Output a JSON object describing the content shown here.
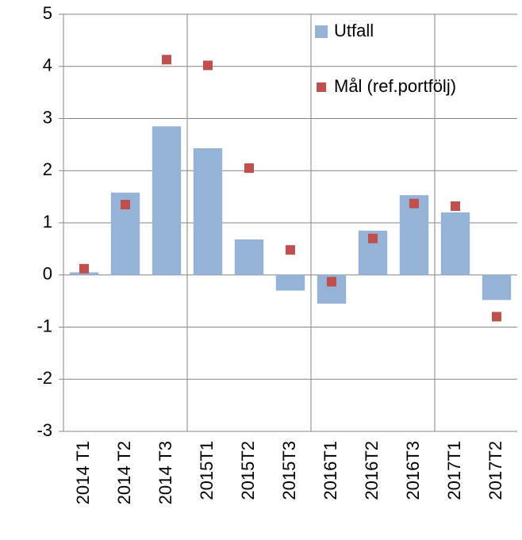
{
  "chart_data": {
    "type": "bar_scatter",
    "categories": [
      "2014 T1",
      "2014 T2",
      "2014 T3",
      "2015T1",
      "2015T2",
      "2015T3",
      "2016T1",
      "2016T2",
      "2016T3",
      "2017T1",
      "2017T2"
    ],
    "series": [
      {
        "name": "Utfall",
        "type": "bar",
        "color": "#95b3d7",
        "values": [
          0.05,
          1.58,
          2.85,
          2.43,
          0.68,
          -0.3,
          -0.55,
          0.85,
          1.53,
          1.2,
          -0.48
        ]
      },
      {
        "name": "Mål (ref.portfölj)",
        "type": "scatter",
        "color": "#c0504d",
        "values": [
          0.12,
          1.35,
          4.13,
          4.02,
          2.05,
          0.48,
          -0.13,
          0.7,
          1.37,
          1.32,
          -0.8
        ]
      }
    ],
    "ylim": [
      -3,
      5
    ],
    "yticks": [
      -3,
      -2,
      -1,
      0,
      1,
      2,
      3,
      4,
      5
    ],
    "grid": true,
    "category_dividers": [
      3,
      6,
      9
    ],
    "legend": "top-right"
  }
}
